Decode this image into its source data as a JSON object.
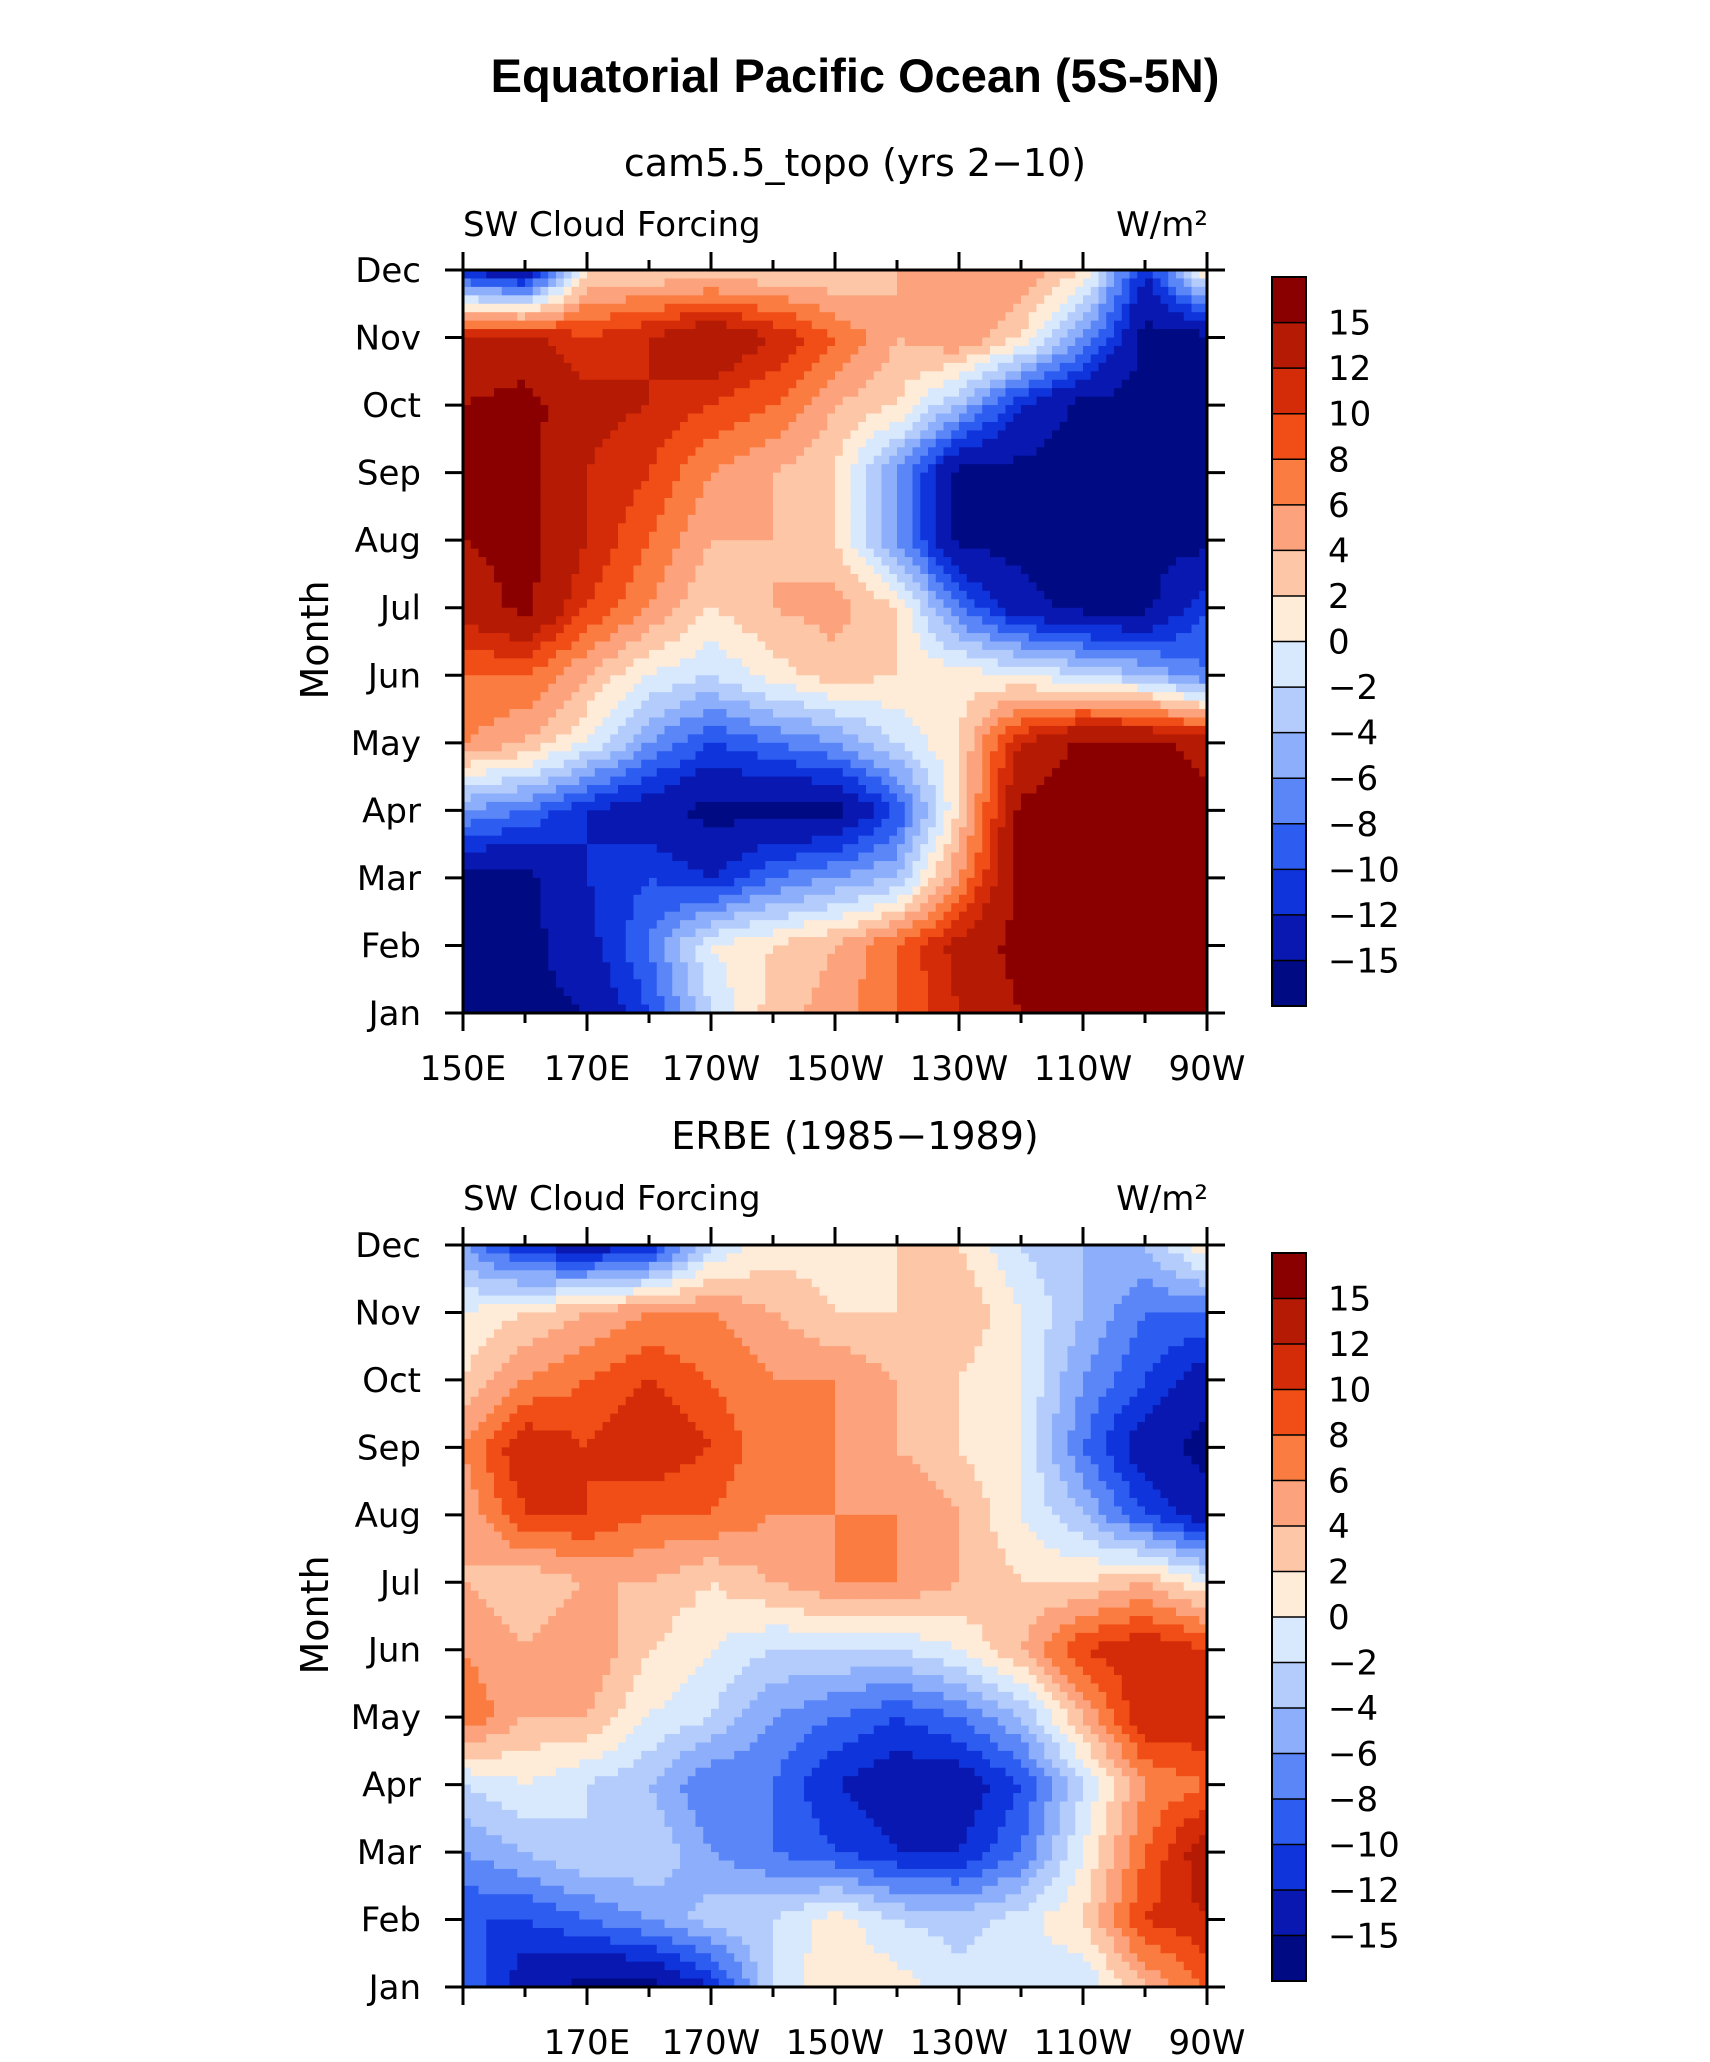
{
  "title": "Equatorial Pacific Ocean (5S-5N)",
  "colorbar_labels": [
    "15",
    "12",
    "10",
    "8",
    "6",
    "4",
    "2",
    "0",
    "−2",
    "−4",
    "−6",
    "−8",
    "−10",
    "−12",
    "−15"
  ],
  "colorbar_colors": [
    "#8a0000",
    "#b51a04",
    "#d42c08",
    "#f04e16",
    "#fb7c40",
    "#fca27c",
    "#fdc6a6",
    "#feebd8",
    "#d8e8fd",
    "#b3ccfb",
    "#8caefb",
    "#5a86f7",
    "#2c5cf0",
    "#0f34dc",
    "#0818b0",
    "#000a82"
  ],
  "chart_data": [
    {
      "type": "heatmap",
      "title": "cam5.5_topo (yrs 2−10)",
      "left_label": "SW Cloud Forcing",
      "right_label": "W/m²",
      "ylabel": "Month",
      "x_tick_labels": [
        "150E",
        "170E",
        "170W",
        "150W",
        "130W",
        "110W",
        "90W"
      ],
      "y_tick_labels": [
        "Jan",
        "Feb",
        "Mar",
        "Apr",
        "May",
        "Jun",
        "Jul",
        "Aug",
        "Sep",
        "Oct",
        "Nov",
        "Dec"
      ],
      "xlim": [
        150,
        270
      ],
      "x": [
        150,
        160,
        170,
        180,
        190,
        200,
        210,
        220,
        230,
        240,
        250,
        260,
        270
      ],
      "y": [
        "Jan",
        "Feb",
        "Mar",
        "Apr",
        "May",
        "Jun",
        "Jul",
        "Aug",
        "Sep",
        "Oct",
        "Nov",
        "Dec"
      ],
      "z": [
        [
          -16,
          -16,
          -15,
          -10,
          -2,
          3,
          5,
          8,
          12,
          15,
          16,
          16,
          16
        ],
        [
          -16,
          -16,
          -13,
          -8,
          0,
          2,
          4,
          8,
          13,
          16,
          16,
          16,
          16
        ],
        [
          -16,
          -16,
          -12,
          -10,
          -12,
          -8,
          -6,
          -4,
          6,
          16,
          16,
          16,
          16
        ],
        [
          -6,
          -8,
          -12,
          -14,
          -16,
          -16,
          -16,
          -10,
          2,
          16,
          16,
          16,
          16
        ],
        [
          6,
          4,
          0,
          -6,
          -10,
          -8,
          -6,
          -2,
          2,
          12,
          16,
          16,
          14
        ],
        [
          8,
          8,
          4,
          0,
          -2,
          1,
          3,
          2,
          1,
          0,
          -2,
          -4,
          -8
        ],
        [
          13,
          16,
          10,
          6,
          2,
          4,
          5,
          2,
          -8,
          -14,
          -16,
          -16,
          -10
        ],
        [
          15,
          16,
          12,
          8,
          4,
          4,
          2,
          -6,
          -16,
          -16,
          -16,
          -16,
          -16
        ],
        [
          15,
          16,
          12,
          10,
          6,
          4,
          2,
          -6,
          -16,
          -16,
          -16,
          -16,
          -16
        ],
        [
          15,
          16,
          13,
          12,
          10,
          8,
          4,
          2,
          -4,
          -12,
          -16,
          -16,
          -16
        ],
        [
          12,
          13,
          10,
          12,
          15,
          12,
          8,
          4,
          6,
          2,
          -6,
          -16,
          -16
        ],
        [
          -12,
          -16,
          2,
          2,
          2,
          2,
          2,
          4,
          6,
          6,
          2,
          -12,
          2
        ]
      ]
    },
    {
      "type": "heatmap",
      "title": "ERBE (1985−1989)",
      "left_label": "SW Cloud Forcing",
      "right_label": "W/m²",
      "ylabel": "Month",
      "x_tick_labels": [
        "170E",
        "170W",
        "150W",
        "130W",
        "110W",
        "90W"
      ],
      "y_tick_labels": [
        "Jan",
        "Feb",
        "Mar",
        "Apr",
        "May",
        "Jun",
        "Jul",
        "Aug",
        "Sep",
        "Oct",
        "Nov",
        "Dec"
      ],
      "xlim": [
        150,
        270
      ],
      "x": [
        150,
        160,
        170,
        180,
        190,
        200,
        210,
        220,
        230,
        240,
        250,
        260,
        270
      ],
      "y": [
        "Jan",
        "Feb",
        "Mar",
        "Apr",
        "May",
        "Jun",
        "Jul",
        "Aug",
        "Sep",
        "Oct",
        "Nov",
        "Dec"
      ],
      "z": [
        [
          -8,
          -14,
          -16,
          -16,
          -12,
          -2,
          2,
          1,
          -1,
          0,
          -2,
          4,
          8
        ],
        [
          -10,
          -10,
          -8,
          -6,
          -3,
          -2,
          1,
          -2,
          -3,
          -1,
          2,
          10,
          12
        ],
        [
          -6,
          -4,
          -2,
          -2,
          -6,
          -8,
          -10,
          -12,
          -12,
          -8,
          0,
          8,
          14
        ],
        [
          -2,
          0,
          -2,
          -4,
          -8,
          -8,
          -12,
          -14,
          -14,
          -10,
          -2,
          6,
          8
        ],
        [
          8,
          4,
          4,
          0,
          -2,
          -6,
          -8,
          -10,
          -8,
          -4,
          4,
          12,
          12
        ],
        [
          6,
          4,
          6,
          2,
          0,
          -2,
          -2,
          -2,
          0,
          4,
          10,
          12,
          10
        ],
        [
          4,
          2,
          4,
          4,
          2,
          4,
          6,
          6,
          4,
          2,
          2,
          4,
          0
        ],
        [
          4,
          10,
          10,
          8,
          8,
          6,
          6,
          6,
          4,
          0,
          -4,
          -10,
          -14
        ],
        [
          6,
          12,
          10,
          12,
          10,
          6,
          6,
          4,
          2,
          0,
          -8,
          -14,
          -16
        ],
        [
          2,
          6,
          8,
          10,
          8,
          6,
          6,
          4,
          2,
          0,
          -6,
          -10,
          -14
        ],
        [
          0,
          2,
          4,
          6,
          6,
          4,
          2,
          2,
          4,
          0,
          -4,
          -8,
          -8
        ],
        [
          -6,
          -12,
          -14,
          -12,
          -2,
          1,
          1,
          2,
          2,
          -2,
          -4,
          -4,
          2
        ]
      ]
    }
  ]
}
